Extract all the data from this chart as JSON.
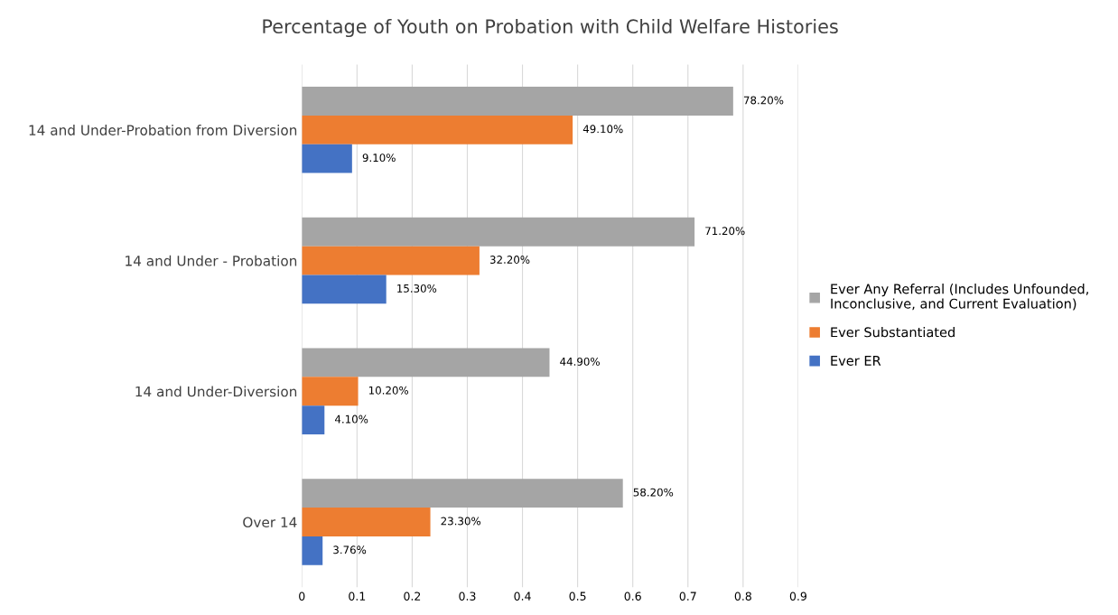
{
  "chart_data": {
    "type": "bar",
    "orientation": "horizontal",
    "title": "Percentage of Youth on Probation with Child Welfare Histories",
    "categories": [
      "14 and Under-Probation from Diversion",
      "14 and Under - Probation",
      "14 and Under-Diversion",
      "Over 14"
    ],
    "series": [
      {
        "name": "Ever Any Referral (Includes Unfounded,\nInconclusive, and Current Evaluation)",
        "color": "#a5a5a5",
        "values": [
          0.782,
          0.712,
          0.449,
          0.582
        ],
        "value_labels": [
          "78.20%",
          "71.20%",
          "44.90%",
          "58.20%"
        ]
      },
      {
        "name": "Ever Substantiated",
        "color": "#ed7d31",
        "values": [
          0.491,
          0.322,
          0.102,
          0.233
        ],
        "value_labels": [
          "49.10%",
          "32.20%",
          "10.20%",
          "23.30%"
        ]
      },
      {
        "name": "Ever ER",
        "color": "#4472c4",
        "values": [
          0.091,
          0.153,
          0.041,
          0.0376
        ],
        "value_labels": [
          "9.10%",
          "15.30%",
          "4.10%",
          "3.76%"
        ]
      }
    ],
    "xlim": [
      0,
      0.9
    ],
    "xticks": [
      0,
      0.1,
      0.2,
      0.3,
      0.4,
      0.5,
      0.6,
      0.7,
      0.8,
      0.9
    ],
    "grid": "x",
    "legend": "right"
  }
}
